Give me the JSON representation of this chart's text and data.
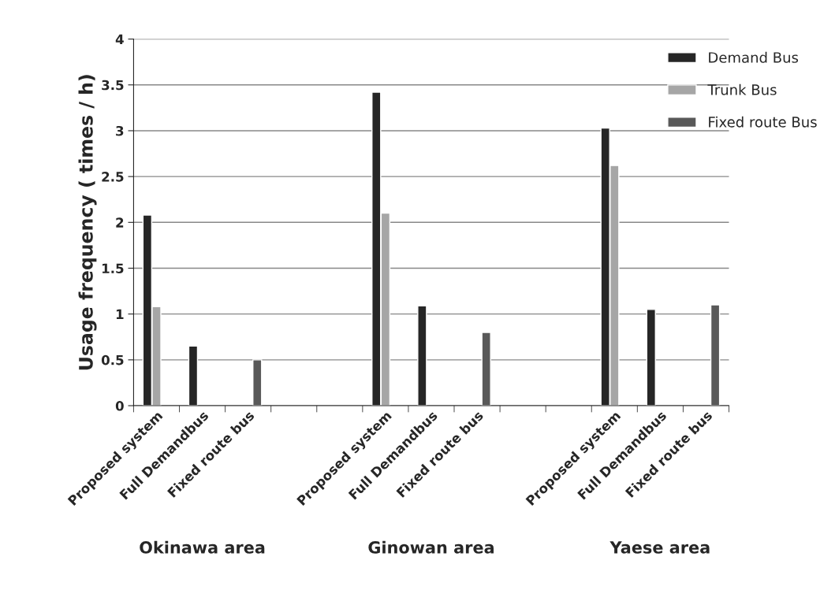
{
  "chart_data": {
    "type": "bar",
    "ylabel": "Usage frequency ( times / h)",
    "categories": [
      "Proposed system",
      "Full Demandbus",
      "Fixed route bus",
      null,
      null,
      "Proposed system",
      "Full Demandbus",
      "Fixed route bus",
      null,
      null,
      "Proposed system",
      "Full Demandbus",
      "Fixed route bus"
    ],
    "series": [
      {
        "name": "Demand Bus",
        "color": "#262626",
        "values": [
          2.08,
          0.65,
          null,
          null,
          null,
          3.42,
          1.09,
          null,
          null,
          null,
          3.03,
          1.05,
          null
        ]
      },
      {
        "name": "Trunk Bus",
        "color": "#a6a6a6",
        "values": [
          1.08,
          null,
          null,
          null,
          null,
          2.1,
          null,
          null,
          null,
          null,
          2.62,
          null,
          null
        ]
      },
      {
        "name": "Fixed route Bus",
        "color": "#595959",
        "values": [
          null,
          null,
          0.5,
          null,
          null,
          null,
          null,
          0.8,
          null,
          null,
          null,
          null,
          1.1
        ]
      }
    ],
    "ylim": [
      0,
      4
    ],
    "yticks": [
      0,
      0.5,
      1,
      1.5,
      2,
      2.5,
      3,
      3.5,
      4
    ],
    "grid": "y",
    "legend": "top right",
    "annotations": [
      "Okinawa area",
      "Ginowan area",
      "Yaese area"
    ]
  }
}
